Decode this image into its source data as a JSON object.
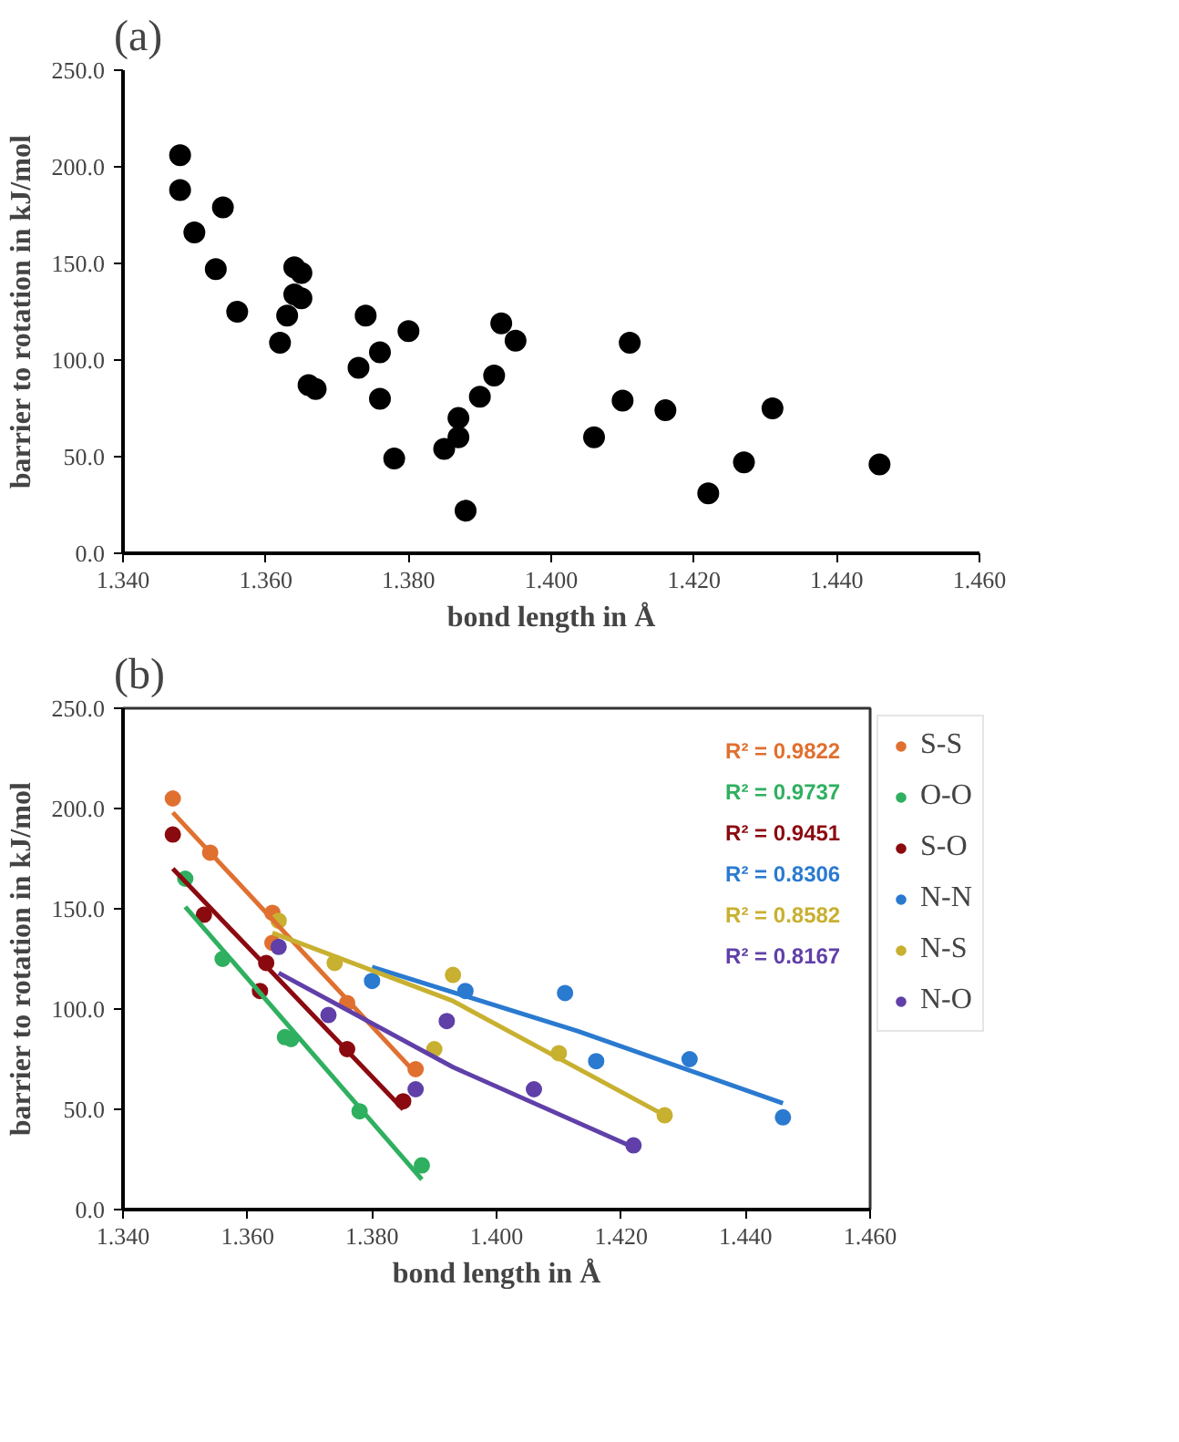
{
  "chart_data": [
    {
      "type": "scatter",
      "title": "(a)",
      "xlabel": "bond length in Å",
      "ylabel": "barrier to rotation in kJ/mol",
      "marker": "circle",
      "grid": false,
      "legend": false,
      "xlim": [
        1.34,
        1.46
      ],
      "xticks": [
        {
          "value": 1.34,
          "label": "1.340"
        },
        {
          "value": 1.36,
          "label": "1.360"
        },
        {
          "value": 1.38,
          "label": "1.380"
        },
        {
          "value": 1.4,
          "label": "1.400"
        },
        {
          "value": 1.42,
          "label": "1.420"
        },
        {
          "value": 1.44,
          "label": "1.440"
        },
        {
          "value": 1.46,
          "label": "1.460"
        }
      ],
      "ylim": [
        0,
        250
      ],
      "yticks": [
        {
          "value": 0,
          "label": "0.0"
        },
        {
          "value": 50,
          "label": "50.0"
        },
        {
          "value": 100,
          "label": "100.0"
        },
        {
          "value": 150,
          "label": "150.0"
        },
        {
          "value": 200,
          "label": "200.0"
        },
        {
          "value": 250,
          "label": "250.0"
        }
      ],
      "series": [
        {
          "color": "#000000",
          "x": [
            1.348,
            1.348,
            1.35,
            1.354,
            1.353,
            1.356,
            1.362,
            1.363,
            1.364,
            1.365,
            1.364,
            1.365,
            1.366,
            1.367,
            1.373,
            1.374,
            1.376,
            1.376,
            1.378,
            1.38,
            1.385,
            1.387,
            1.387,
            1.388,
            1.39,
            1.392,
            1.393,
            1.395,
            1.406,
            1.41,
            1.411,
            1.416,
            1.422,
            1.427,
            1.431,
            1.446
          ],
          "values": [
            206,
            188,
            166,
            179,
            147,
            125,
            109,
            123,
            148,
            145,
            134,
            132,
            87,
            85,
            96,
            123,
            104,
            80,
            49,
            115,
            54,
            60,
            70,
            22,
            81,
            92,
            119,
            110,
            60,
            79,
            109,
            74,
            31,
            47,
            75,
            46
          ]
        }
      ]
    },
    {
      "type": "scatter",
      "title": "(b)",
      "xlabel": "bond length in Å",
      "ylabel": "barrier to rotation in kJ/mol",
      "marker": "circle",
      "grid": false,
      "legend": "right",
      "xlim": [
        1.34,
        1.46
      ],
      "xticks": [
        {
          "value": 1.34,
          "label": "1.340"
        },
        {
          "value": 1.36,
          "label": "1.360"
        },
        {
          "value": 1.38,
          "label": "1.380"
        },
        {
          "value": 1.4,
          "label": "1.400"
        },
        {
          "value": 1.42,
          "label": "1.420"
        },
        {
          "value": 1.44,
          "label": "1.440"
        },
        {
          "value": 1.46,
          "label": "1.460"
        }
      ],
      "ylim": [
        0,
        250
      ],
      "yticks": [
        {
          "value": 0,
          "label": "0.0"
        },
        {
          "value": 50,
          "label": "50.0"
        },
        {
          "value": 100,
          "label": "100.0"
        },
        {
          "value": 150,
          "label": "150.0"
        },
        {
          "value": 200,
          "label": "200.0"
        },
        {
          "value": 250,
          "label": "250.0"
        }
      ],
      "annotations": [
        "R² = 0.9822",
        "R² = 0.9737",
        "R² = 0.9451",
        "R² = 0.8306",
        "R² = 0.8582",
        "R² = 0.8167"
      ],
      "series": [
        {
          "name": "S-S",
          "color": "#e07030",
          "x": [
            1.348,
            1.354,
            1.364,
            1.364,
            1.376,
            1.387
          ],
          "values": [
            205,
            178,
            148,
            133,
            103,
            70
          ]
        },
        {
          "name": "O-O",
          "color": "#2fb060",
          "x": [
            1.35,
            1.356,
            1.366,
            1.367,
            1.378,
            1.388
          ],
          "values": [
            165,
            125,
            86,
            85,
            49,
            22
          ]
        },
        {
          "name": "S-O",
          "color": "#8b0a10",
          "x": [
            1.348,
            1.353,
            1.362,
            1.363,
            1.376,
            1.385
          ],
          "values": [
            187,
            147,
            109,
            123,
            80,
            54
          ]
        },
        {
          "name": "N-N",
          "color": "#2a7ad0",
          "x": [
            1.38,
            1.395,
            1.411,
            1.416,
            1.431,
            1.446
          ],
          "values": [
            114,
            109,
            108,
            74,
            75,
            46
          ]
        },
        {
          "name": "N-S",
          "color": "#c8b030",
          "x": [
            1.365,
            1.374,
            1.39,
            1.393,
            1.41,
            1.427
          ],
          "values": [
            144,
            123,
            80,
            117,
            78,
            47
          ]
        },
        {
          "name": "N-O",
          "color": "#6040a8",
          "x": [
            1.365,
            1.373,
            1.387,
            1.392,
            1.406,
            1.422
          ],
          "values": [
            131,
            97,
            60,
            94,
            60,
            32
          ]
        },
        {
          "type": "line",
          "marker": "none",
          "color": "#e07030",
          "x": [
            1.348,
            1.387
          ],
          "values": [
            198,
            68
          ]
        },
        {
          "type": "line",
          "marker": "none",
          "color": "#2fb060",
          "x": [
            1.35,
            1.388
          ],
          "values": [
            151,
            15
          ]
        },
        {
          "type": "line",
          "marker": "none",
          "color": "#8b0a10",
          "x": [
            1.348,
            1.385
          ],
          "values": [
            170,
            50
          ]
        },
        {
          "type": "line",
          "marker": "none",
          "color": "#2a7ad0",
          "x": [
            1.38,
            1.413,
            1.446
          ],
          "values": [
            121,
            89,
            53
          ]
        },
        {
          "type": "line",
          "marker": "none",
          "color": "#c8b030",
          "x": [
            1.364,
            1.393,
            1.427
          ],
          "values": [
            138,
            104,
            47
          ]
        },
        {
          "type": "line",
          "marker": "none",
          "color": "#6040a8",
          "x": [
            1.365,
            1.393,
            1.422
          ],
          "values": [
            118,
            71,
            31
          ]
        }
      ]
    }
  ]
}
